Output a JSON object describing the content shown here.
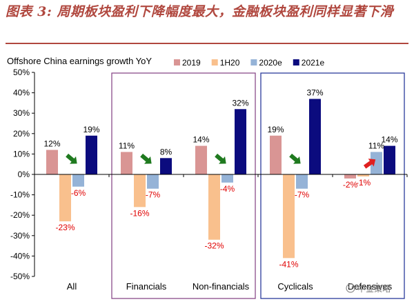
{
  "caption": "图表 3: 周期板块盈利下降幅度最大，金融板块盈利同样显著下滑",
  "watermark": "中金策略",
  "chart_data": {
    "type": "bar",
    "title": "Offshore China earnings growth YoY",
    "categories": [
      "All",
      "Financials",
      "Non-financials",
      "Cyclicals",
      "Defensives"
    ],
    "series": [
      {
        "name": "2019",
        "color": "#d99594",
        "values": [
          12,
          11,
          14,
          19,
          -2
        ]
      },
      {
        "name": "1H20",
        "color": "#f9c08d",
        "values": [
          -23,
          -16,
          -32,
          -41,
          -1
        ]
      },
      {
        "name": "2020e",
        "color": "#95b3d7",
        "values": [
          -6,
          -7,
          -4,
          -7,
          11
        ]
      },
      {
        "name": "2021e",
        "color": "#0b0b7e",
        "values": [
          19,
          8,
          32,
          37,
          14
        ]
      }
    ],
    "data_label_series": [
      "2019",
      "1H20",
      "2020e",
      "2021e"
    ],
    "data_label_colors": {
      "negative": "#e00000",
      "positive": "#000000"
    },
    "trend_arrows": [
      {
        "category": "All",
        "direction": "down",
        "color": "#1f7a1f"
      },
      {
        "category": "Financials",
        "direction": "down",
        "color": "#1f7a1f"
      },
      {
        "category": "Non-financials",
        "direction": "down",
        "color": "#1f7a1f"
      },
      {
        "category": "Cyclicals",
        "direction": "down",
        "color": "#1f7a1f"
      },
      {
        "category": "Defensives",
        "direction": "up",
        "color": "#e02020"
      }
    ],
    "highlight_groups": [
      {
        "categories": [
          "Financials",
          "Non-financials"
        ],
        "color": "#8a4a8a"
      },
      {
        "categories": [
          "Cyclicals",
          "Defensives"
        ],
        "color": "#2a3a9a"
      }
    ],
    "ylim": [
      -50,
      50
    ],
    "yticks": [
      -50,
      -40,
      -30,
      -20,
      -10,
      0,
      10,
      20,
      30,
      40,
      50
    ],
    "ytick_format": "percent",
    "legend": "top-right",
    "grid": false
  }
}
